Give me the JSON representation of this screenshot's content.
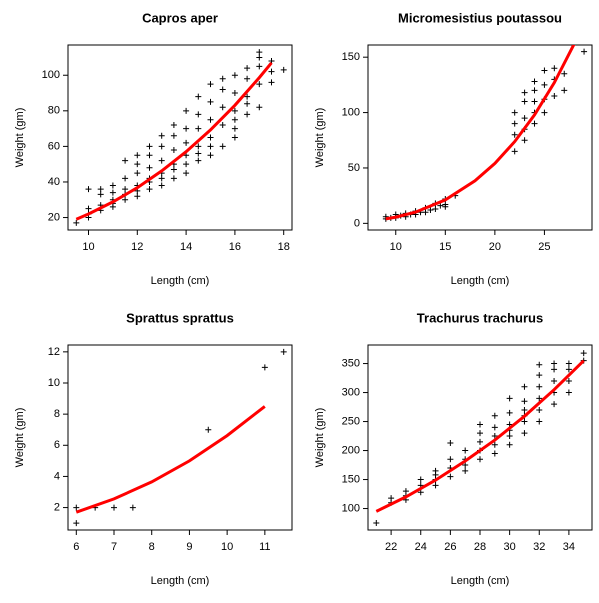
{
  "chart_data": [
    {
      "type": "scatter",
      "title": "Capros aper",
      "x_label": "Length (cm)",
      "y_label": "Weight (gm)",
      "xlim": [
        9.16,
        18.34
      ],
      "ylim": [
        13,
        117
      ],
      "xticks": [
        10,
        12,
        14,
        16,
        18
      ],
      "yticks": [
        20,
        40,
        60,
        80,
        100
      ],
      "series": [
        {
          "type": "scatter",
          "color": "#000000",
          "x": [
            9.5,
            10,
            10,
            10,
            10,
            10.5,
            10.5,
            10.5,
            10.5,
            11,
            11,
            11,
            11,
            11,
            11.5,
            11.5,
            11.5,
            11.5,
            11.5,
            12,
            12,
            12,
            12,
            12,
            12,
            12.5,
            12.5,
            12.5,
            12.5,
            12.5,
            12.5,
            13,
            13,
            13,
            13,
            13,
            13,
            13.5,
            13.5,
            13.5,
            13.5,
            13.5,
            13.5,
            14,
            14,
            14,
            14,
            14,
            14,
            14.5,
            14.5,
            14.5,
            14.5,
            14.5,
            14.5,
            15,
            15,
            15,
            15,
            15,
            15,
            15.5,
            15.5,
            15.5,
            15.5,
            15.5,
            16,
            16,
            16,
            16,
            16,
            16,
            16.5,
            16.5,
            16.5,
            16.5,
            16.5,
            17,
            17,
            17,
            17,
            17,
            17.5,
            17.5,
            17.5,
            18
          ],
          "values": [
            17,
            22,
            25,
            36,
            20,
            24,
            27,
            33,
            36,
            26,
            30,
            34,
            38,
            28,
            30,
            36,
            42,
            33,
            52,
            32,
            38,
            45,
            50,
            55,
            35,
            36,
            42,
            48,
            55,
            60,
            40,
            38,
            45,
            52,
            60,
            66,
            42,
            42,
            50,
            58,
            66,
            72,
            47,
            45,
            55,
            62,
            70,
            80,
            50,
            52,
            60,
            70,
            78,
            88,
            56,
            55,
            65,
            75,
            85,
            95,
            60,
            60,
            72,
            82,
            92,
            98,
            70,
            80,
            90,
            100,
            75,
            65,
            78,
            88,
            98,
            104,
            84,
            82,
            95,
            105,
            110,
            113,
            96,
            102,
            108,
            103
          ]
        },
        {
          "type": "line",
          "color": "#ff0000",
          "x": [
            9.5,
            10,
            11,
            12,
            13,
            14,
            15,
            16,
            17,
            17.5
          ],
          "values": [
            19,
            22.0,
            28.8,
            36.8,
            46.2,
            57.0,
            69.3,
            83.1,
            98.7,
            107
          ]
        }
      ]
    },
    {
      "type": "scatter",
      "title": "Micromesistius poutassou",
      "x_label": "Length (cm)",
      "y_label": "Weight (gm)",
      "xlim": [
        7.2,
        29.8
      ],
      "ylim": [
        -6,
        161
      ],
      "xticks": [
        10,
        15,
        20,
        25
      ],
      "yticks": [
        0,
        50,
        100,
        150
      ],
      "series": [
        {
          "type": "scatter",
          "color": "#000000",
          "x": [
            9,
            9,
            9.5,
            10,
            10,
            10.5,
            11,
            11,
            11.5,
            12,
            12,
            12.5,
            13,
            13,
            13.5,
            14,
            14,
            14.5,
            15,
            15,
            15,
            16,
            22,
            22,
            22,
            22,
            23,
            23,
            23,
            23,
            23,
            24,
            24,
            24,
            24,
            24,
            25,
            25,
            25,
            25,
            26,
            26,
            26,
            27,
            27,
            29
          ],
          "values": [
            4,
            6,
            5,
            5,
            8,
            7,
            6,
            9,
            8,
            8,
            11,
            10,
            10,
            14,
            12,
            13,
            18,
            16,
            17,
            22,
            15,
            25,
            65,
            80,
            90,
            100,
            75,
            85,
            95,
            110,
            118,
            90,
            100,
            110,
            120,
            128,
            100,
            112,
            125,
            138,
            115,
            130,
            140,
            120,
            135,
            155
          ]
        },
        {
          "type": "line",
          "color": "#ff0000",
          "x": [
            9,
            10,
            12,
            15,
            18,
            20,
            22,
            24,
            26,
            28
          ],
          "values": [
            4,
            5.6,
            10.2,
            21.2,
            38.4,
            54.1,
            73.8,
            97.9,
            127,
            162
          ]
        }
      ]
    },
    {
      "type": "scatter",
      "title": "Sprattus sprattus",
      "x_label": "Length (cm)",
      "y_label": "Weight (gm)",
      "xlim": [
        5.78,
        11.72
      ],
      "ylim": [
        0.56,
        12.44
      ],
      "xticks": [
        6,
        7,
        8,
        9,
        10,
        11
      ],
      "yticks": [
        2,
        4,
        6,
        8,
        10,
        12
      ],
      "series": [
        {
          "type": "scatter",
          "color": "#000000",
          "x": [
            6,
            6,
            6.5,
            7,
            7.5,
            9.5,
            11,
            11.5
          ],
          "values": [
            1,
            2,
            2,
            2,
            2,
            7,
            11,
            12
          ]
        },
        {
          "type": "line",
          "color": "#ff0000",
          "x": [
            6,
            7,
            8,
            9,
            10,
            11
          ],
          "values": [
            1.7,
            2.56,
            3.65,
            5.0,
            6.62,
            8.5
          ]
        }
      ]
    },
    {
      "type": "scatter",
      "title": "Trachurus trachurus",
      "x_label": "Length (cm)",
      "y_label": "Weight (gm)",
      "xlim": [
        20.44,
        35.56
      ],
      "ylim": [
        63,
        382
      ],
      "xticks": [
        22,
        24,
        26,
        28,
        30,
        32,
        34
      ],
      "yticks": [
        100,
        150,
        200,
        250,
        300,
        350
      ],
      "series": [
        {
          "type": "scatter",
          "color": "#000000",
          "x": [
            21,
            22,
            22,
            23,
            23,
            23,
            24,
            24,
            24,
            25,
            25,
            25,
            25,
            26,
            26,
            26,
            26,
            27,
            27,
            27,
            27,
            28,
            28,
            28,
            28,
            28,
            29,
            29,
            29,
            29,
            29,
            30,
            30,
            30,
            30,
            30,
            30,
            31,
            31,
            31,
            31,
            31,
            31,
            32,
            32,
            32,
            32,
            32,
            32,
            33,
            33,
            33,
            33,
            33,
            34,
            34,
            34,
            34,
            35,
            35
          ],
          "values": [
            75,
            110,
            118,
            115,
            130,
            122,
            128,
            140,
            150,
            140,
            150,
            158,
            165,
            155,
            170,
            185,
            213,
            165,
            185,
            200,
            175,
            185,
            200,
            215,
            230,
            245,
            195,
            210,
            225,
            240,
            260,
            210,
            225,
            245,
            265,
            290,
            235,
            230,
            250,
            270,
            285,
            310,
            260,
            250,
            270,
            290,
            310,
            330,
            348,
            280,
            300,
            320,
            340,
            350,
            300,
            320,
            340,
            350,
            355,
            368
          ]
        },
        {
          "type": "line",
          "color": "#ff0000",
          "x": [
            21,
            23,
            25,
            27,
            29,
            31,
            33,
            35
          ],
          "values": [
            95,
            120,
            149,
            182,
            218,
            259,
            305,
            355
          ]
        }
      ]
    }
  ]
}
